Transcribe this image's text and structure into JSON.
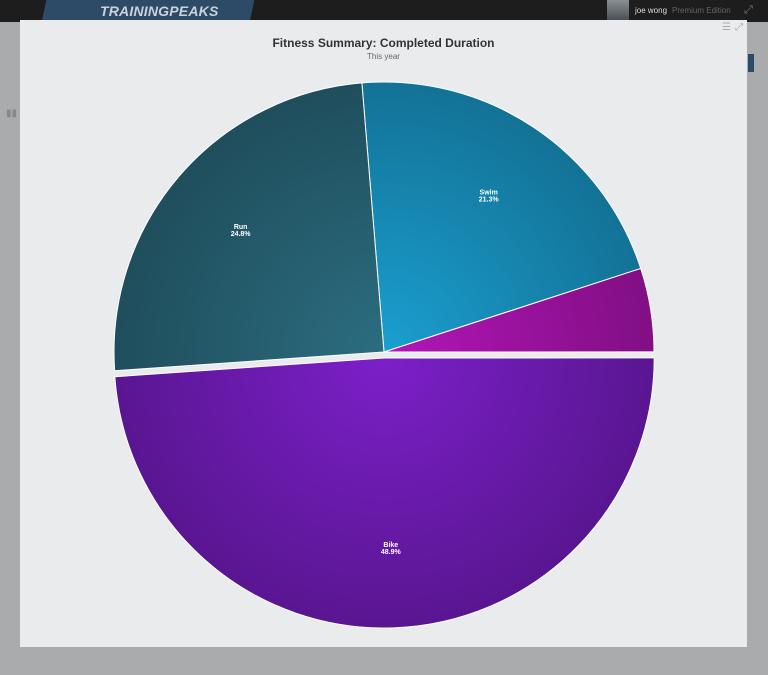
{
  "app": {
    "logo": "TRAININGPEAKS",
    "user_name": "joe wong",
    "edition": "Premium Edition"
  },
  "icons": {
    "menu": "hamburger-menu-icon",
    "fullscreen": "expand-icon"
  },
  "chart_data": {
    "type": "pie",
    "title": "Fitness Summary: Completed Duration",
    "subtitle": "This year",
    "slices": [
      {
        "name": "Swim",
        "value": 21.3,
        "label": "21.3%",
        "color": "#1a9fd0"
      },
      {
        "name": "",
        "value": 5.0,
        "label": "",
        "color": "#b315b8"
      },
      {
        "name": "Bike",
        "value": 48.9,
        "label": "48.9%",
        "color": "#7c1fc9",
        "sliced": true
      },
      {
        "name": "Run",
        "value": 24.8,
        "label": "24.8%",
        "color": "#2b6d80"
      }
    ],
    "legend": "none"
  }
}
